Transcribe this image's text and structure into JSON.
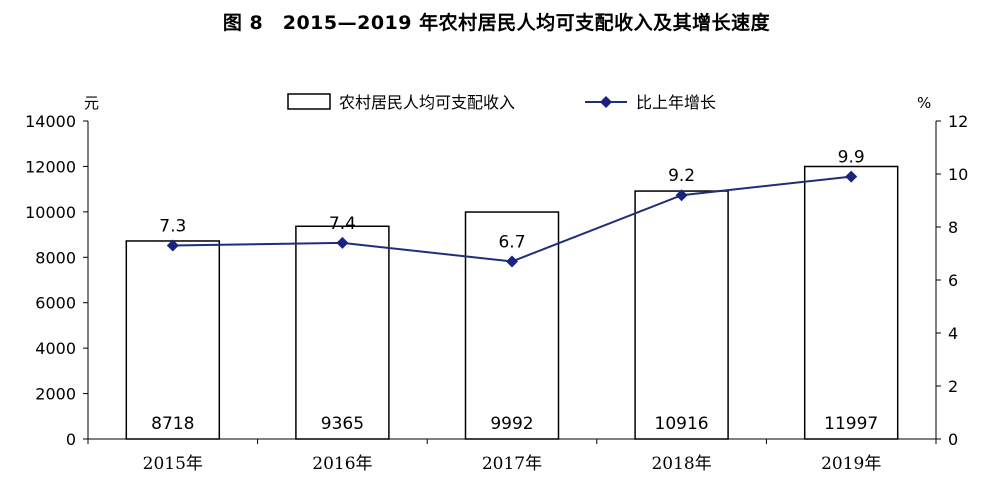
{
  "chart_data": {
    "type": "bar",
    "title": "图 8　2015—2019 年农村居民人均可支配收入及其增长速度",
    "categories": [
      "2015年",
      "2016年",
      "2017年",
      "2018年",
      "2019年"
    ],
    "series": [
      {
        "name": "农村居民人均可支配收入",
        "type": "bar",
        "axis": "left",
        "values": [
          8718,
          9365,
          9992,
          10916,
          11997
        ]
      },
      {
        "name": "比上年增长",
        "type": "line",
        "axis": "right",
        "values": [
          7.3,
          7.4,
          6.7,
          9.2,
          9.9
        ]
      }
    ],
    "y_left": {
      "unit": "元",
      "min": 0,
      "max": 14000,
      "step": 2000
    },
    "y_right": {
      "unit": "%",
      "min": 0,
      "max": 12,
      "step": 2
    },
    "legend": "top-center",
    "grid": false,
    "colors": {
      "bar_fill": "#ffffff",
      "bar_stroke": "#000000",
      "line": "#1f2f7a",
      "marker": "#1a237e"
    }
  }
}
